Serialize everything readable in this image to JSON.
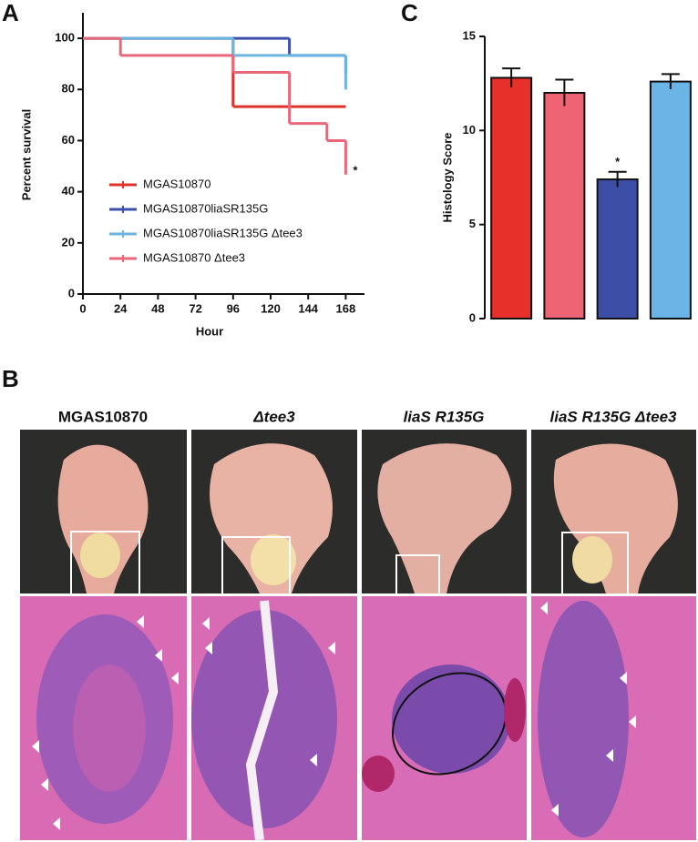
{
  "panel_labels": [
    "A",
    "B",
    "C"
  ],
  "photo_columns": [
    "MGAS10870",
    "Δtee3",
    "liaS R135G",
    "liaS R135G Δtee3"
  ],
  "chart_data": [
    {
      "type": "line",
      "drawstyle": "steps-post",
      "ylabel": "Percent survival",
      "xlabel": "Hour",
      "xlim": [
        0,
        180
      ],
      "xticks": [
        0,
        24,
        48,
        72,
        96,
        120,
        144,
        168
      ],
      "ylim": [
        0,
        110
      ],
      "yticks": [
        0,
        20,
        40,
        60,
        80,
        100
      ],
      "legend": "lower left",
      "series": [
        {
          "name": "MGAS10870",
          "color": "#e0302a",
          "x": [
            0,
            96,
            168
          ],
          "values": [
            100,
            73.3,
            73.3
          ]
        },
        {
          "name": "MGAS10870liaSR135G",
          "color": "#3d4fa8",
          "x": [
            0,
            132,
            168,
            168
          ],
          "values": [
            100,
            93.3,
            93.3,
            86.7
          ]
        },
        {
          "name": "MGAS10870liaSR135G Δtee3",
          "color": "#6bb5e0",
          "x": [
            0,
            96,
            168,
            168
          ],
          "values": [
            100,
            93.3,
            93.3,
            80
          ]
        },
        {
          "name": "MGAS10870 Δtee3",
          "color": "#e8687a",
          "x": [
            0,
            24,
            96,
            132,
            156,
            168,
            168
          ],
          "values": [
            100,
            93.3,
            86.7,
            66.7,
            60,
            60,
            46.7
          ]
        }
      ],
      "annotations": [
        {
          "text": "*",
          "x": 168,
          "y": 46.7
        }
      ]
    },
    {
      "type": "bar",
      "ylabel": "Histology Score",
      "categories": [
        null,
        null,
        null,
        null
      ],
      "values": [
        12.8,
        12.0,
        7.4,
        12.6
      ],
      "errors": [
        0.5,
        0.7,
        0.4,
        0.4
      ],
      "colors": [
        "#e8302a",
        "#ef6474",
        "#3c4ea6",
        "#6ab4e6"
      ],
      "ylim": [
        0,
        15
      ],
      "yticks": [
        0,
        5,
        10,
        15
      ],
      "annotations": [
        {
          "text": "*",
          "category": 2
        }
      ]
    }
  ]
}
